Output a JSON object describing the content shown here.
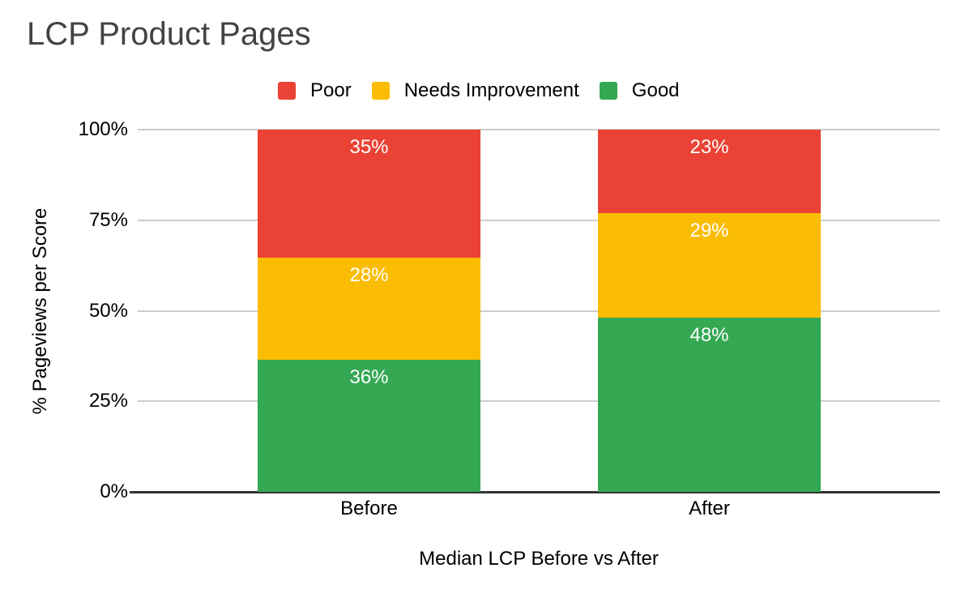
{
  "chart_data": {
    "type": "bar",
    "stacked": true,
    "title": "LCP Product Pages",
    "categories": [
      "Before",
      "After"
    ],
    "series": [
      {
        "name": "Poor",
        "color": "#EA4335",
        "values": [
          35,
          23
        ],
        "labels": [
          "35%",
          "23%"
        ]
      },
      {
        "name": "Needs Improvement",
        "color": "#FBBC04",
        "values": [
          28,
          29
        ],
        "labels": [
          "28%",
          "29%"
        ]
      },
      {
        "name": "Good",
        "color": "#34A853",
        "values": [
          36,
          48
        ],
        "labels": [
          "36%",
          "48%"
        ]
      }
    ],
    "xlabel": "Median LCP Before vs After",
    "ylabel": "% Pageviews per Score",
    "ylim": [
      0,
      100
    ],
    "y_ticks": [
      {
        "value": 100,
        "label": "100%"
      },
      {
        "value": 75,
        "label": "75%"
      },
      {
        "value": 50,
        "label": "50%"
      },
      {
        "value": 25,
        "label": "25%"
      },
      {
        "value": 0,
        "label": "0%"
      }
    ],
    "legend_position": "top",
    "grid": true,
    "colors": {
      "background": "#ffffff",
      "title_text": "#434343",
      "axis_text": "#000000",
      "data_label_text": "#ffffff",
      "gridline": "#cccccc",
      "axis_line": "#333333"
    }
  }
}
